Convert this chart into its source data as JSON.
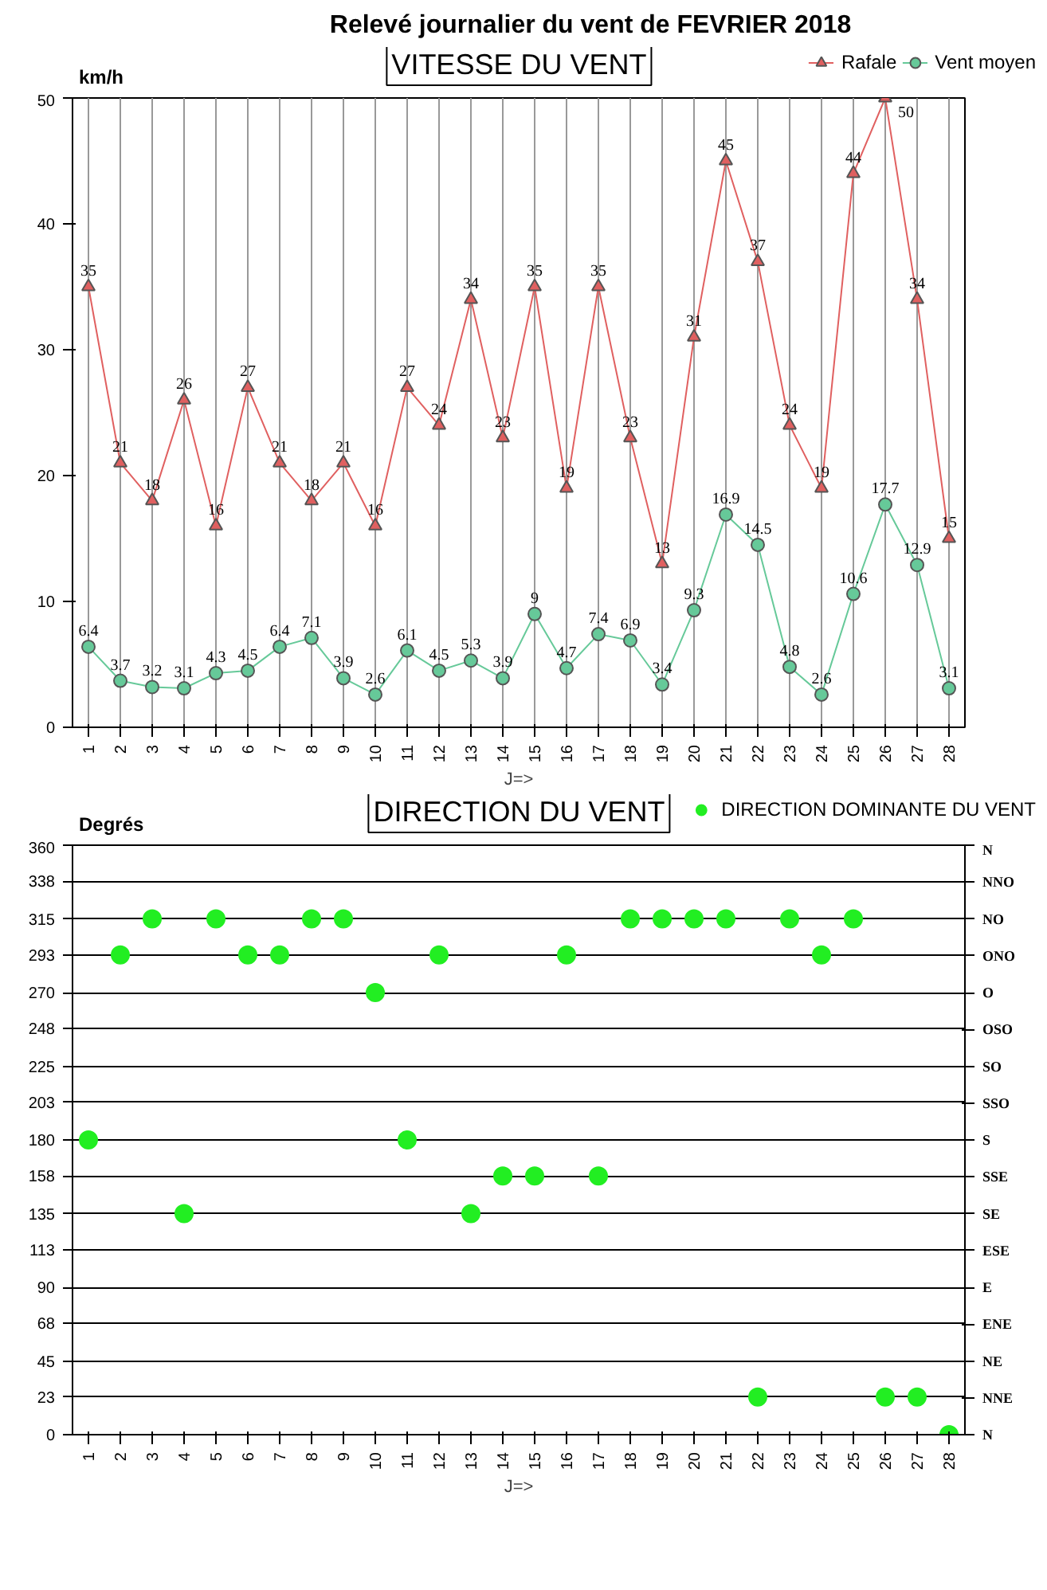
{
  "chart_data": [
    {
      "type": "line",
      "title": "Relevé journalier du vent de FEVRIER 2018",
      "subtitle": "VITESSE DU VENT",
      "ylabel": "km/h",
      "xlabel": "J=>",
      "categories": [
        "1",
        "2",
        "3",
        "4",
        "5",
        "6",
        "7",
        "8",
        "9",
        "10",
        "11",
        "12",
        "13",
        "14",
        "15",
        "16",
        "17",
        "18",
        "19",
        "20",
        "21",
        "22",
        "23",
        "24",
        "25",
        "26",
        "27",
        "28"
      ],
      "series": [
        {
          "name": "Rafale",
          "color": "#e06060",
          "marker": "triangle",
          "values": [
            35,
            21,
            18,
            26,
            16,
            27,
            21,
            18,
            21,
            16,
            27,
            24,
            34,
            23,
            35,
            19,
            35,
            23,
            13,
            31,
            45,
            37,
            24,
            19,
            44,
            50,
            34,
            15
          ]
        },
        {
          "name": "Vent moyen",
          "color": "#66c999",
          "marker": "circle",
          "values": [
            6.4,
            3.7,
            3.2,
            3.1,
            4.3,
            4.5,
            6.4,
            7.1,
            3.9,
            2.6,
            6.1,
            4.5,
            5.3,
            3.9,
            9,
            4.7,
            7.4,
            6.9,
            3.4,
            9.3,
            16.9,
            14.5,
            4.8,
            2.6,
            10.6,
            17.7,
            12.9,
            3.1
          ]
        }
      ],
      "ylim": [
        0,
        50
      ],
      "yticks": [
        0,
        10,
        20,
        30,
        40,
        50
      ],
      "grid": "x",
      "legend": "top right",
      "data_labels": true
    },
    {
      "type": "scatter",
      "subtitle": "DIRECTION DU VENT",
      "ylabel": "Degrés",
      "xlabel": "J=>",
      "categories": [
        "1",
        "2",
        "3",
        "4",
        "5",
        "6",
        "7",
        "8",
        "9",
        "10",
        "11",
        "12",
        "13",
        "14",
        "15",
        "16",
        "17",
        "18",
        "19",
        "20",
        "21",
        "22",
        "23",
        "24",
        "25",
        "26",
        "27",
        "28"
      ],
      "series": [
        {
          "name": "DIRECTION DOMINANTE DU VENT",
          "color": "#22ee22",
          "marker": "circle",
          "values": [
            180,
            293,
            315,
            135,
            315,
            293,
            293,
            315,
            315,
            270,
            180,
            293,
            135,
            158,
            158,
            293,
            158,
            315,
            315,
            315,
            315,
            23,
            315,
            293,
            315,
            23,
            23,
            0
          ]
        }
      ],
      "ylim": [
        0,
        360
      ],
      "yticks": [
        0,
        23,
        45,
        68,
        90,
        113,
        135,
        158,
        180,
        203,
        225,
        248,
        270,
        293,
        315,
        338,
        360
      ],
      "y2_categories": [
        "N",
        "NNO",
        "NO",
        "ONO",
        "O",
        "OSO",
        "SO",
        "SSO",
        "S",
        "SSE",
        "SE",
        "ESE",
        "E",
        "ENE",
        "NE",
        "NNE",
        "N"
      ],
      "grid": "y",
      "legend": "top right"
    }
  ]
}
